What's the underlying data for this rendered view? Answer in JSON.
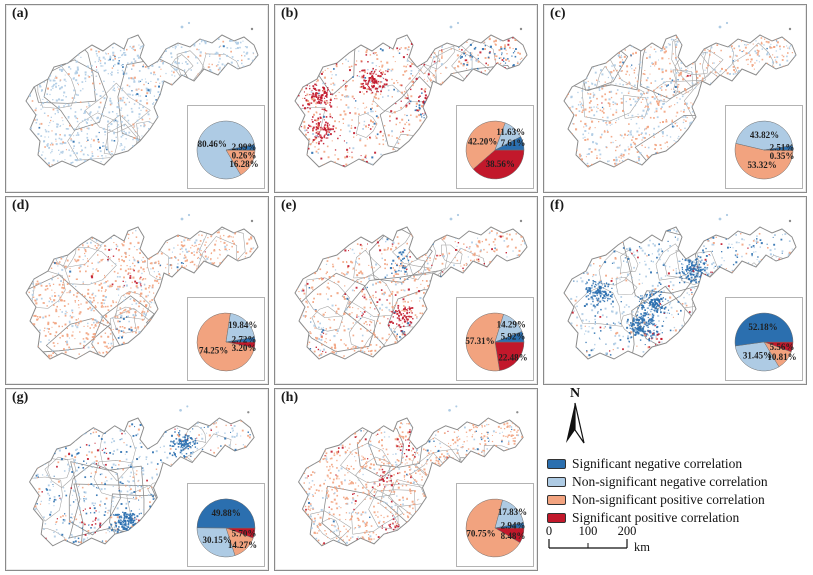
{
  "figure": {
    "description": "Eight-panel provincial correlation maps, each with an inset pie chart of pixel shares",
    "colors": {
      "significant_negative": "#2B6FAF",
      "non_significant_negative": "#AECBE4",
      "non_significant_positive": "#F2A37F",
      "significant_positive": "#C2182B",
      "map_boundary": "#8b8b8b",
      "county_line": "#9f9f9f",
      "panel_border": "#8a8a8a",
      "text": "#1a1a1a"
    }
  },
  "north_arrow": {
    "label": "N"
  },
  "scale_bar": {
    "ticks": [
      "0",
      "100",
      "200"
    ],
    "unit": "km"
  },
  "legend": {
    "items": [
      {
        "key": "significant_negative",
        "label": "Significant negative correlation",
        "color": "#2B6FAF"
      },
      {
        "key": "non_significant_negative",
        "label": "Non-significant negative correlation",
        "color": "#AECBE4"
      },
      {
        "key": "non_significant_positive",
        "label": "Non-significant positive correlation",
        "color": "#F2A37F"
      },
      {
        "key": "significant_positive",
        "label": "Significant positive correlation",
        "color": "#C2182B"
      }
    ]
  },
  "panels": [
    {
      "id": "a",
      "label": "(a)",
      "values": {
        "significant_negative": 2.99,
        "non_significant_negative": 80.46,
        "non_significant_positive": 16.28,
        "significant_positive": 0.26
      }
    },
    {
      "id": "b",
      "label": "(b)",
      "values": {
        "significant_negative": 7.61,
        "non_significant_negative": 11.63,
        "non_significant_positive": 42.2,
        "significant_positive": 38.56
      }
    },
    {
      "id": "c",
      "label": "(c)",
      "values": {
        "significant_negative": 2.51,
        "non_significant_negative": 43.82,
        "non_significant_positive": 53.32,
        "significant_positive": 0.35
      }
    },
    {
      "id": "d",
      "label": "(d)",
      "values": {
        "significant_negative": 2.72,
        "non_significant_negative": 19.84,
        "non_significant_positive": 74.25,
        "significant_positive": 3.2
      }
    },
    {
      "id": "e",
      "label": "(e)",
      "values": {
        "significant_negative": 5.92,
        "non_significant_negative": 14.29,
        "non_significant_positive": 57.31,
        "significant_positive": 22.48
      }
    },
    {
      "id": "f",
      "label": "(f)",
      "values": {
        "significant_negative": 52.18,
        "non_significant_negative": 31.45,
        "non_significant_positive": 10.81,
        "significant_positive": 5.56
      }
    },
    {
      "id": "g",
      "label": "(g)",
      "values": {
        "significant_negative": 49.88,
        "non_significant_negative": 30.15,
        "non_significant_positive": 14.27,
        "significant_positive": 5.7
      }
    },
    {
      "id": "h",
      "label": "(h)",
      "values": {
        "significant_negative": 2.94,
        "non_significant_negative": 17.83,
        "non_significant_positive": 70.75,
        "significant_positive": 8.48
      }
    }
  ],
  "chart_data": {
    "type": "pie",
    "note": "one inset pie per map panel; values are percent of map pixels",
    "unit": "%",
    "categories": [
      "Significant negative correlation",
      "Non-significant negative correlation",
      "Non-significant positive correlation",
      "Significant positive correlation"
    ],
    "series": [
      {
        "panel": "(a)",
        "values": [
          2.99,
          80.46,
          16.28,
          0.26
        ]
      },
      {
        "panel": "(b)",
        "values": [
          7.61,
          11.63,
          42.2,
          38.56
        ]
      },
      {
        "panel": "(c)",
        "values": [
          2.51,
          43.82,
          53.32,
          0.35
        ]
      },
      {
        "panel": "(d)",
        "values": [
          2.72,
          19.84,
          74.25,
          3.2
        ]
      },
      {
        "panel": "(e)",
        "values": [
          5.92,
          14.29,
          57.31,
          22.48
        ]
      },
      {
        "panel": "(f)",
        "values": [
          52.18,
          31.45,
          10.81,
          5.56
        ]
      },
      {
        "panel": "(g)",
        "values": [
          49.88,
          30.15,
          14.27,
          5.7
        ]
      },
      {
        "panel": "(h)",
        "values": [
          2.94,
          17.83,
          70.75,
          8.48
        ]
      }
    ]
  }
}
